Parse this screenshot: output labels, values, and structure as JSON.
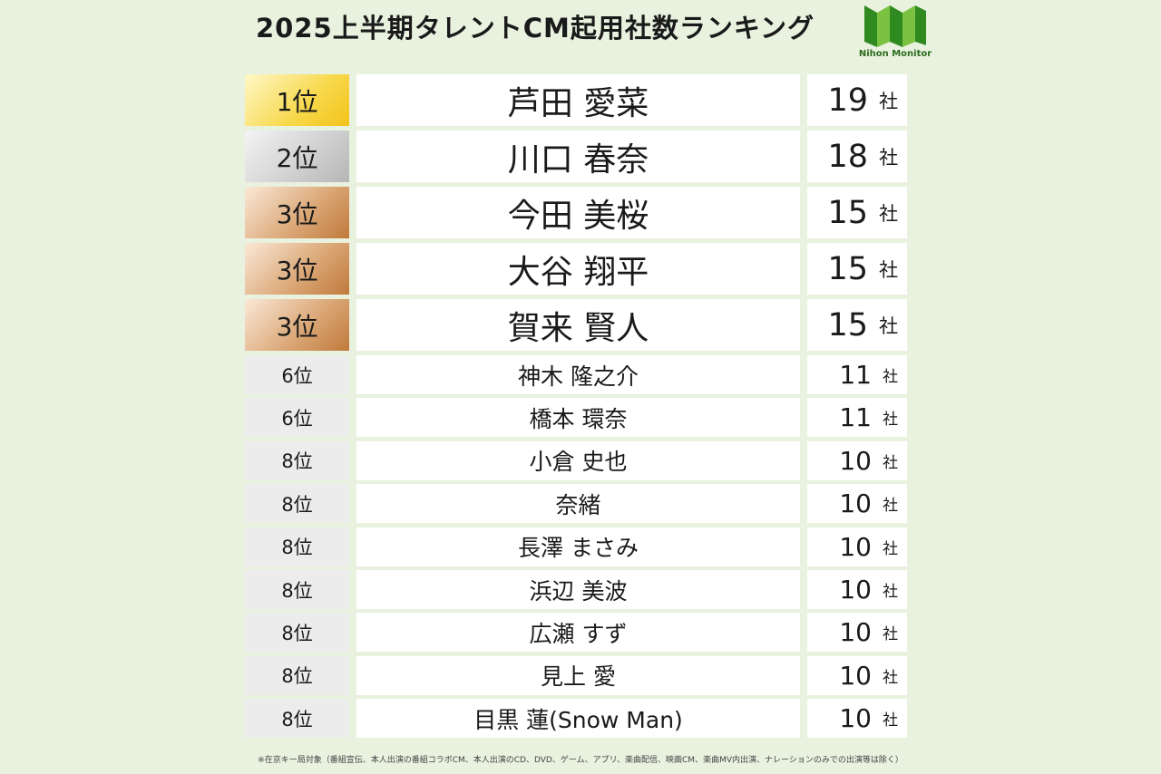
{
  "header": {
    "title": "2025上半期タレントCM起用社数ランキング",
    "logo": "Nihon Monitor"
  },
  "table": {
    "rows": [
      [
        "1位",
        "芦田 愛菜",
        19,
        "社"
      ],
      [
        "2位",
        "川口 春奈",
        18,
        "社"
      ],
      [
        "3位",
        "今田 美桜",
        15,
        "社"
      ],
      [
        "3位",
        "大谷 翔平",
        15,
        "社"
      ],
      [
        "3位",
        "賀来 賢人",
        15,
        "社"
      ],
      [
        "6位",
        "神木 隆之介",
        11,
        "社"
      ],
      [
        "6位",
        "橋本 環奈",
        11,
        "社"
      ],
      [
        "8位",
        "小倉 史也",
        10,
        "社"
      ],
      [
        "8位",
        "奈緒",
        10,
        "社"
      ],
      [
        "8位",
        "長澤 まさみ",
        10,
        "社"
      ],
      [
        "8位",
        "浜辺 美波",
        10,
        "社"
      ],
      [
        "8位",
        "広瀬 すず",
        10,
        "社"
      ],
      [
        "8位",
        "見上 愛",
        10,
        "社"
      ],
      [
        "8位",
        "目黒 蓮(Snow Man)",
        10,
        "社"
      ]
    ]
  },
  "footnote": "※在京キー局対象（番組宣伝、本人出演の番組コラボCM、本人出演のCD、DVD、ゲーム、アプリ、楽曲配信、映画CM、楽曲MV内出演、ナレーションのみでの出演等は除く）"
}
